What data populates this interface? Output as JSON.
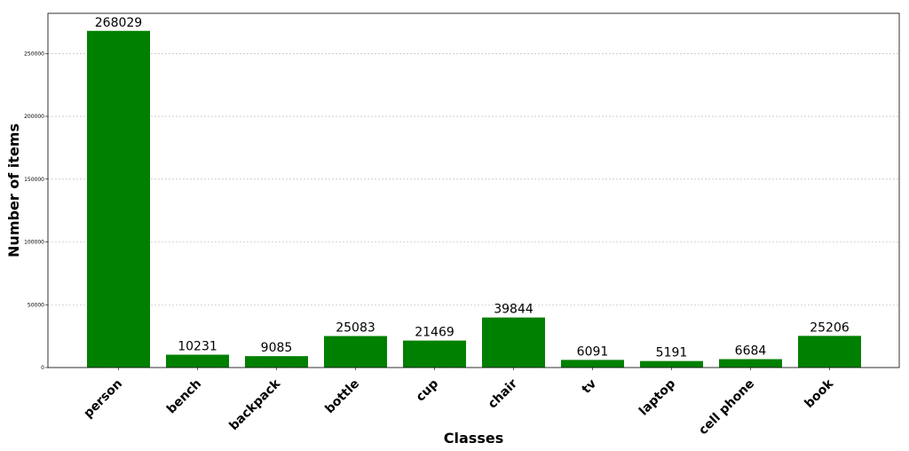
{
  "chart_data": {
    "type": "bar",
    "categories": [
      "person",
      "bench",
      "backpack",
      "bottle",
      "cup",
      "chair",
      "tv",
      "laptop",
      "cell phone",
      "book"
    ],
    "values": [
      268029,
      10231,
      9085,
      25083,
      21469,
      39844,
      6091,
      5191,
      6684,
      25206
    ],
    "xlabel": "Classes",
    "ylabel": "Number of items",
    "ylim": [
      0,
      282000
    ],
    "yticks": [
      0,
      50000,
      100000,
      150000,
      200000,
      250000
    ],
    "grid": "horizontal dashed",
    "bar_color": "#008000",
    "data_labels": true
  }
}
